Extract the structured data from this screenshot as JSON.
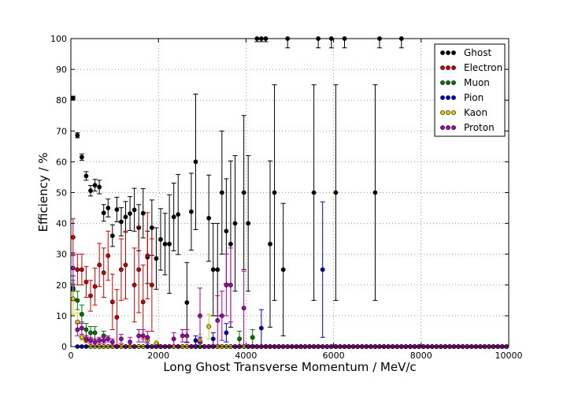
{
  "chart_data": {
    "type": "scatter",
    "title": "",
    "xlabel": "Long Ghost Transverse Momentum / MeV/c",
    "ylabel": "Efficiency / %",
    "xlim": [
      0,
      10000
    ],
    "ylim": [
      0,
      100
    ],
    "xticks": [
      0,
      2000,
      4000,
      6000,
      8000,
      10000
    ],
    "yticks": [
      0,
      10,
      20,
      30,
      40,
      50,
      60,
      70,
      80,
      90,
      100
    ],
    "grid": true,
    "legend_position": "top-right",
    "series": [
      {
        "name": "Ghost",
        "color": "#000000",
        "points": [
          [
            50,
            80.7,
            0.6
          ],
          [
            150,
            68.6,
            0.8
          ],
          [
            250,
            61.5,
            1.0
          ],
          [
            350,
            55.4,
            1.4
          ],
          [
            450,
            50.6,
            1.7
          ],
          [
            550,
            52.4,
            1.9
          ],
          [
            650,
            51.8,
            2.2
          ],
          [
            750,
            43.4,
            2.7
          ],
          [
            850,
            45.0,
            2.9
          ],
          [
            950,
            36.0,
            3.5
          ],
          [
            1050,
            44.5,
            4.0
          ],
          [
            1150,
            40.5,
            4.6
          ],
          [
            1250,
            42.1,
            5.0
          ],
          [
            1350,
            43.2,
            5.5
          ],
          [
            1450,
            44.4,
            7.0
          ],
          [
            1550,
            38.6,
            7.5
          ],
          [
            1650,
            43.3,
            8.0
          ],
          [
            1750,
            29.0,
            8.5
          ],
          [
            1850,
            38.6,
            9.0
          ],
          [
            1950,
            28.6,
            10.0
          ],
          [
            2050,
            34.8,
            10.0
          ],
          [
            2150,
            33.3,
            10.0
          ],
          [
            2250,
            33.3,
            16.0
          ],
          [
            2350,
            42.1,
            11.0
          ],
          [
            2450,
            42.9,
            13.0
          ],
          [
            2650,
            14.3,
            13.0
          ],
          [
            2750,
            43.8,
            12.5
          ],
          [
            2850,
            60.0,
            22.0
          ],
          [
            3150,
            41.7,
            14.0
          ],
          [
            3250,
            25.0,
            15.0
          ],
          [
            3350,
            25.0,
            15.0
          ],
          [
            3450,
            50.0,
            20.0
          ],
          [
            3550,
            37.5,
            17.0
          ],
          [
            3650,
            33.3,
            27.0
          ],
          [
            3750,
            40.0,
            22.0
          ],
          [
            3950,
            50.0,
            25.0
          ],
          [
            4050,
            40.0,
            22.0
          ],
          [
            4250,
            100,
            1.0
          ],
          [
            4350,
            100,
            1.0
          ],
          [
            4450,
            100,
            1.0
          ],
          [
            4550,
            33.3,
            27.0
          ],
          [
            4650,
            50.0,
            35.0
          ],
          [
            4850,
            25.0,
            21.5
          ],
          [
            4950,
            100,
            3.0
          ],
          [
            5550,
            50.0,
            35.0
          ],
          [
            5650,
            100,
            3.0
          ],
          [
            5950,
            100,
            3.0
          ],
          [
            6050,
            50.0,
            35.0
          ],
          [
            6250,
            100,
            3.0
          ],
          [
            6950,
            50.0,
            35.0
          ],
          [
            7050,
            100,
            3.0
          ],
          [
            7550,
            100,
            3.0
          ]
        ]
      },
      {
        "name": "Electron",
        "color": "#cc0000",
        "points": [
          [
            50,
            35.5,
            6.0
          ],
          [
            150,
            25.0,
            5.0
          ],
          [
            250,
            25.0,
            5.0
          ],
          [
            350,
            21.0,
            5.0
          ],
          [
            450,
            16.5,
            5.0
          ],
          [
            550,
            19.5,
            6.0
          ],
          [
            650,
            26.5,
            7.0
          ],
          [
            750,
            24.0,
            8.0
          ],
          [
            850,
            29.5,
            8.0
          ],
          [
            950,
            14.5,
            9.0
          ],
          [
            1050,
            9.5,
            9.0
          ],
          [
            1150,
            25.0,
            10.0
          ],
          [
            1250,
            26.5,
            11.0
          ],
          [
            1450,
            20.0,
            12.0
          ],
          [
            1550,
            25.0,
            14.0
          ],
          [
            1650,
            14.5,
            12.0
          ],
          [
            1750,
            29.5,
            14.0
          ],
          [
            1850,
            20.0,
            15.0
          ]
        ]
      },
      {
        "name": "Muon",
        "color": "#007700",
        "points": [
          [
            50,
            18.5,
            3.0
          ],
          [
            150,
            15.0,
            3.0
          ],
          [
            250,
            10.5,
            3.0
          ],
          [
            350,
            5.5,
            2.0
          ],
          [
            450,
            4.5,
            2.0
          ],
          [
            550,
            4.5,
            2.0
          ],
          [
            750,
            3.5,
            1.5
          ],
          [
            3850,
            2.5,
            2.5
          ],
          [
            4150,
            3.0,
            2.5
          ]
        ]
      },
      {
        "name": "Pion",
        "color": "#0000cc",
        "points": [
          [
            50,
            19.0,
            4.0
          ],
          [
            2850,
            2.0,
            1.5
          ],
          [
            2950,
            1.5,
            1.5
          ],
          [
            3250,
            2.5,
            2.0
          ],
          [
            3550,
            4.5,
            3.0
          ],
          [
            4350,
            6.0,
            6.0
          ],
          [
            5750,
            25.0,
            22.0
          ]
        ]
      },
      {
        "name": "Kaon",
        "color": "#ddcc00",
        "points": [
          [
            50,
            15.5,
            5.0
          ],
          [
            150,
            8.0,
            3.0
          ],
          [
            250,
            3.0,
            1.0
          ],
          [
            350,
            2.0,
            1.0
          ],
          [
            1750,
            2.0,
            1.0
          ],
          [
            1950,
            1.0,
            1.0
          ],
          [
            2950,
            2.0,
            2.0
          ],
          [
            3150,
            6.5,
            4.0
          ]
        ]
      },
      {
        "name": "Proton",
        "color": "#aa00aa",
        "points": [
          [
            50,
            25.5,
            5.0
          ],
          [
            150,
            5.5,
            2.0
          ],
          [
            250,
            6.0,
            2.0
          ],
          [
            350,
            2.5,
            1.0
          ],
          [
            450,
            2.0,
            1.0
          ],
          [
            550,
            1.5,
            1.0
          ],
          [
            650,
            2.0,
            1.0
          ],
          [
            750,
            2.0,
            1.0
          ],
          [
            850,
            2.5,
            1.0
          ],
          [
            950,
            1.5,
            1.0
          ],
          [
            1150,
            2.5,
            1.5
          ],
          [
            1350,
            1.5,
            1.5
          ],
          [
            1550,
            3.5,
            2.0
          ],
          [
            1650,
            3.5,
            2.0
          ],
          [
            1750,
            3.0,
            2.0
          ],
          [
            2350,
            2.5,
            2.0
          ],
          [
            2550,
            3.5,
            2.0
          ],
          [
            2650,
            3.5,
            2.0
          ],
          [
            2950,
            10.0,
            9.0
          ],
          [
            3350,
            8.5,
            8.0
          ],
          [
            3450,
            10.0,
            8.0
          ],
          [
            3550,
            20.0,
            10.0
          ],
          [
            3650,
            20.0,
            12.0
          ],
          [
            3950,
            12.5,
            12.0
          ]
        ]
      }
    ]
  }
}
